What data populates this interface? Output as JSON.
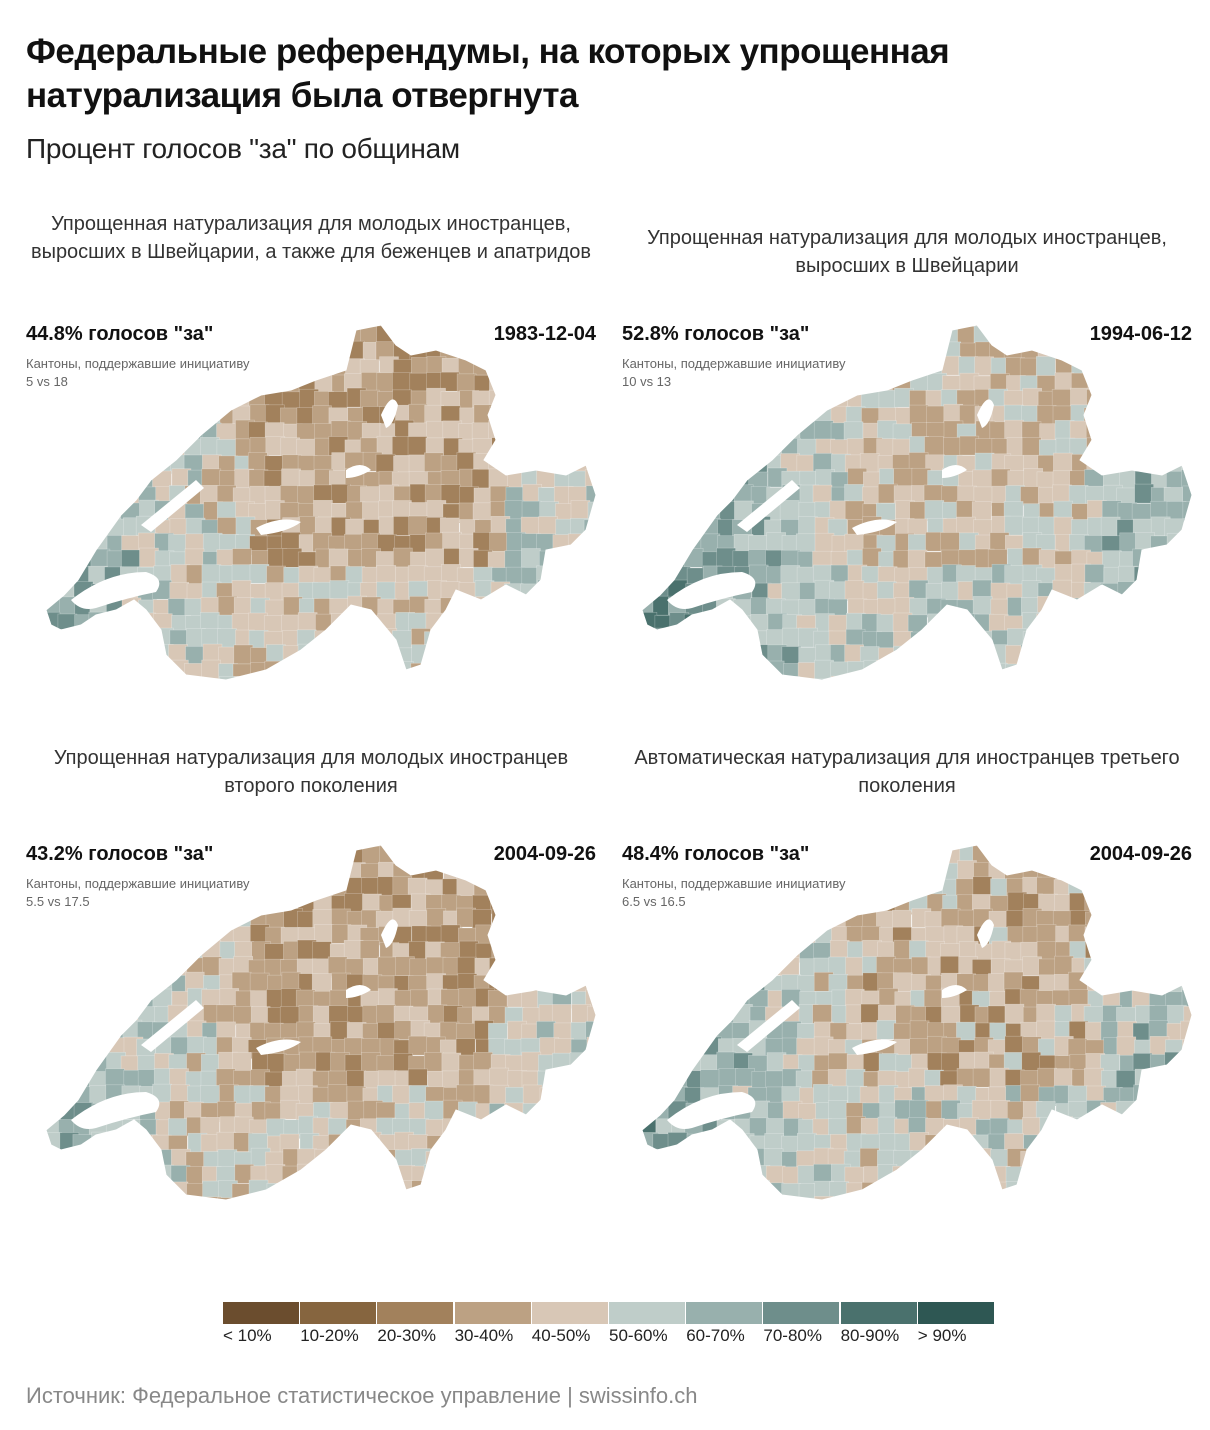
{
  "header": {
    "title": "Федеральные референдумы, на которых упрощенная натурализация была отвергнута",
    "subtitle": "Процент голосов \"за\" по общинам"
  },
  "panels": [
    {
      "title": "Упрощенная натурализация для молодых иностранцев, выросших в Швейцарии, а также для беженцев и апатридов",
      "pct": "44.8% голосов \"за\"",
      "date": "1983-12-04",
      "cantons_label": "Кантоны, поддержавшие инициативу",
      "cantons": "5 vs 18",
      "share_yes": 44.8
    },
    {
      "title": "Упрощенная натурализация для молодых иностранцев, выросших в Швейцарии",
      "pct": "52.8% голосов \"за\"",
      "date": "1994-06-12",
      "cantons_label": "Кантоны, поддержавшие инициативу",
      "cantons": "10 vs 13",
      "share_yes": 52.8
    },
    {
      "title": "Упрощенная натурализация для молодых иностранцев второго поколения",
      "pct": "43.2% голосов \"за\"",
      "date": "2004-09-26",
      "cantons_label": "Кантоны, поддержавшие инициативу",
      "cantons": "5.5 vs 17.5",
      "share_yes": 43.2
    },
    {
      "title": "Автоматическая натурализация для иностранцев третьего поколения",
      "pct": "48.4% голосов \"за\"",
      "date": "2004-09-26",
      "cantons_label": "Кантоны, поддержавшие инициативу",
      "cantons": "6.5 vs 16.5",
      "share_yes": 48.4
    }
  ],
  "legend": [
    {
      "label": "< 10%",
      "color": "#6b4d2e"
    },
    {
      "label": "10-20%",
      "color": "#86653f"
    },
    {
      "label": "20-30%",
      "color": "#a2815c"
    },
    {
      "label": "30-40%",
      "color": "#bca183"
    },
    {
      "label": "40-50%",
      "color": "#d8c7b6"
    },
    {
      "label": "50-60%",
      "color": "#bfcdc9"
    },
    {
      "label": "60-70%",
      "color": "#98b0ad"
    },
    {
      "label": "70-80%",
      "color": "#6e8e8b"
    },
    {
      "label": "80-90%",
      "color": "#4a716d"
    },
    {
      "label": "> 90%",
      "color": "#2e5753"
    }
  ],
  "source": "Источник: Федеральное статистическое управление | swissinfo.ch"
}
